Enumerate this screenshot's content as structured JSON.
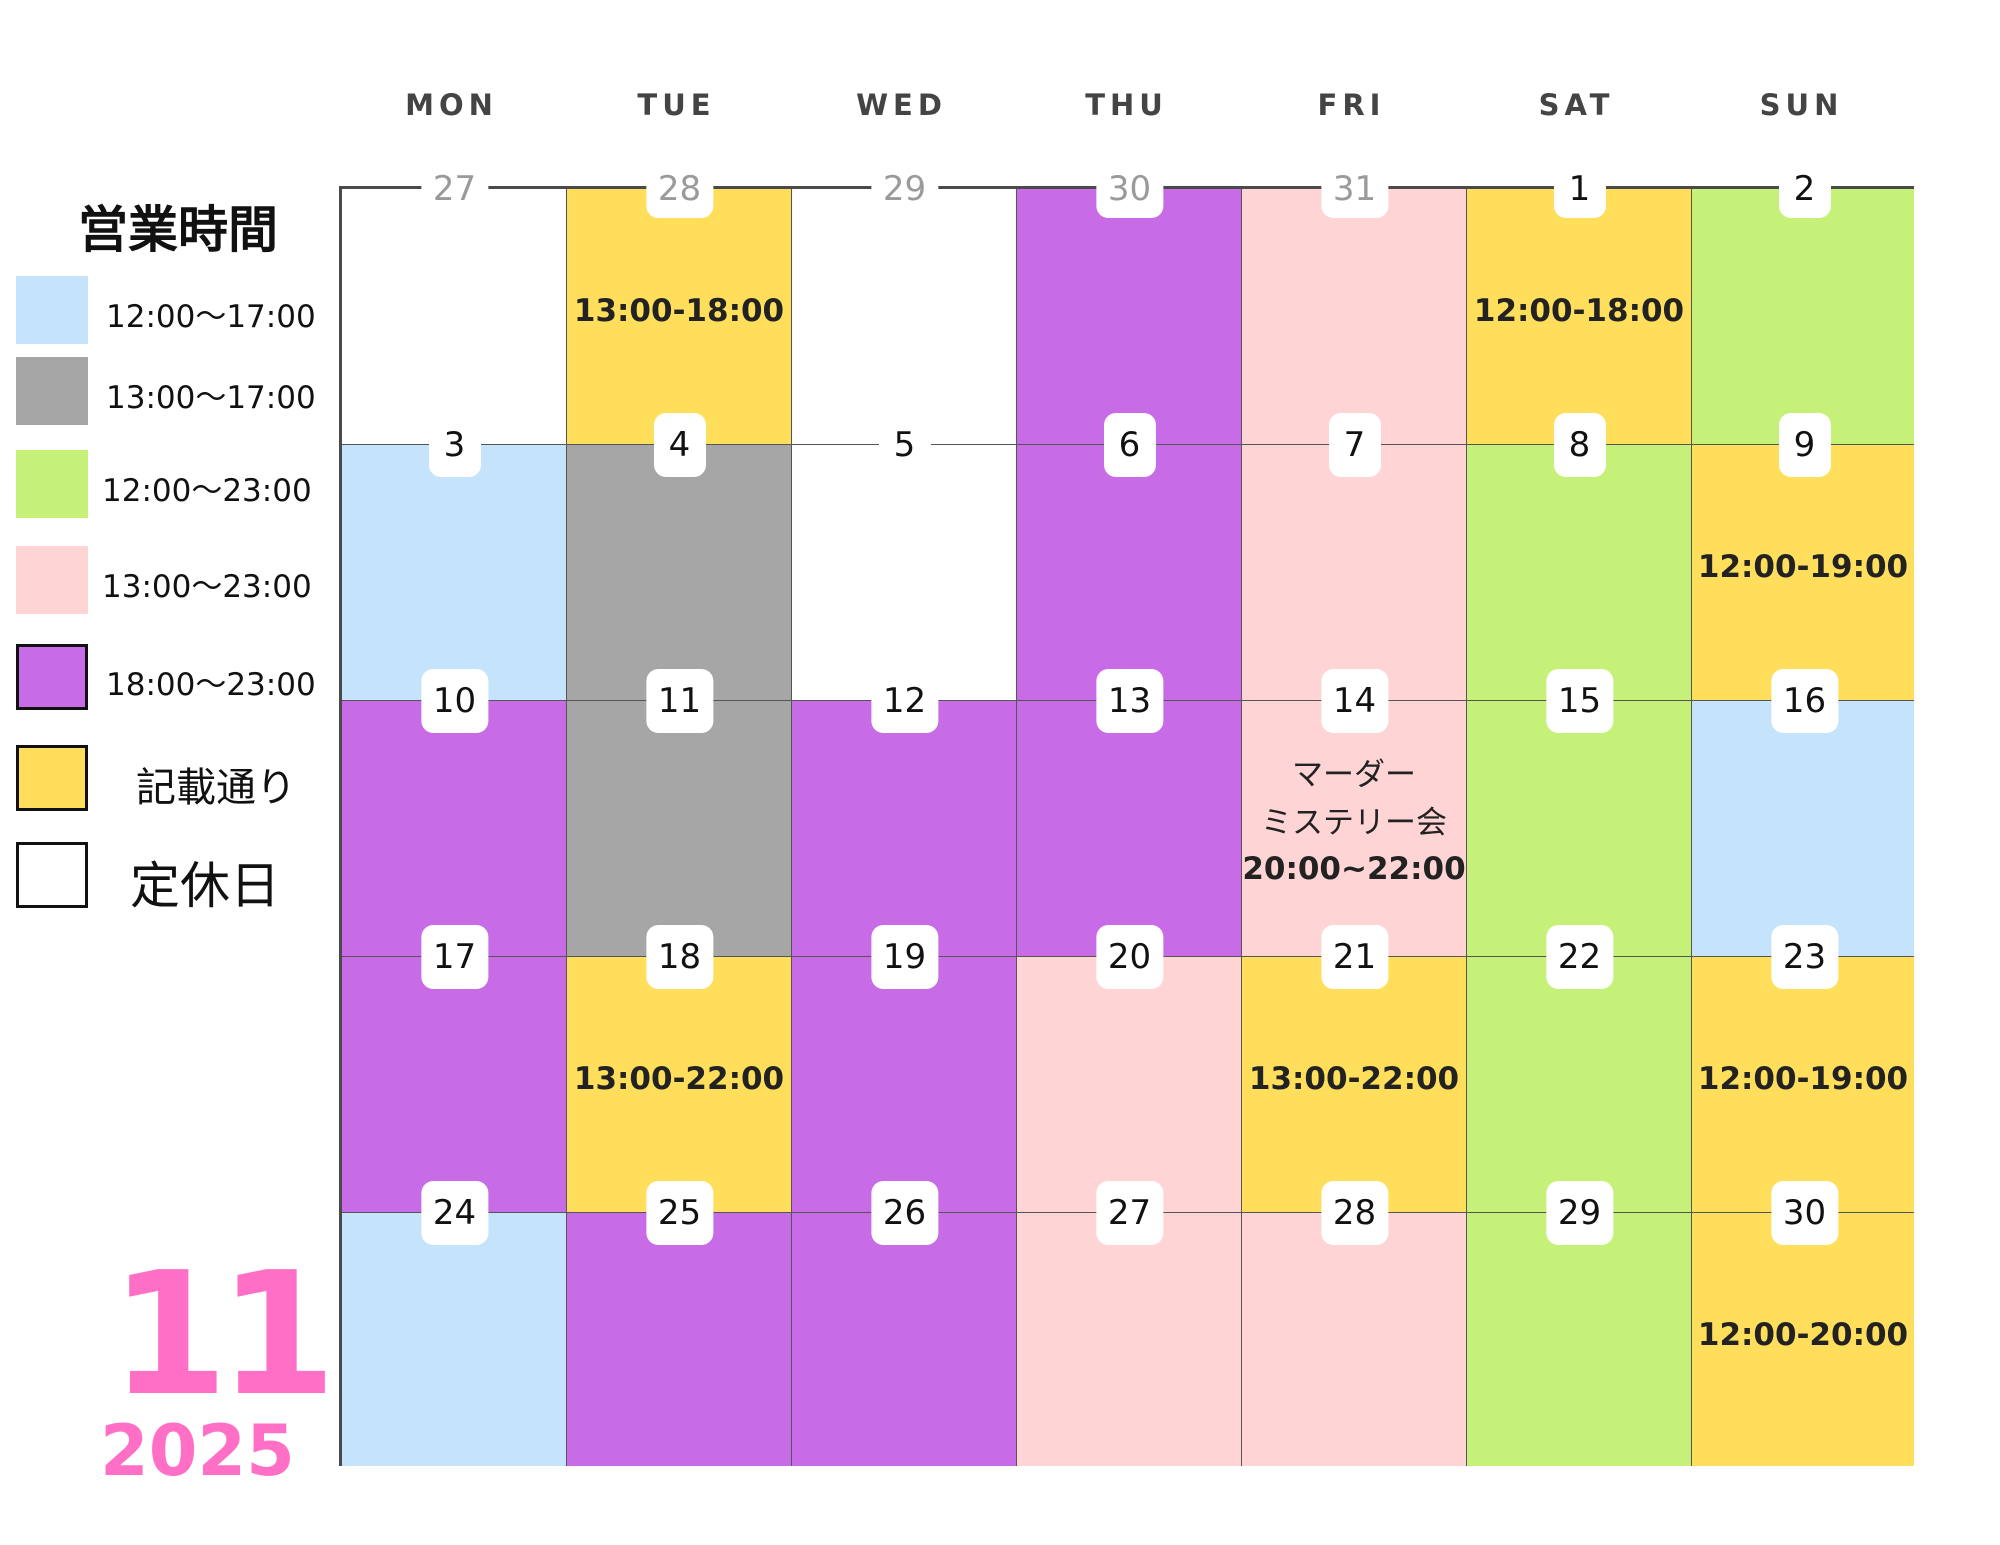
{
  "colors": {
    "blue": "#c5e4fb",
    "gray": "#a6a6a6",
    "green": "#c5f178",
    "pink": "#ffd4d4",
    "purple": "#c86be6",
    "yellow": "#ffde5b",
    "white": "#ffffff",
    "month": "#ff6fc6"
  },
  "weekdays": [
    "MON",
    "TUE",
    "WED",
    "THU",
    "FRI",
    "SAT",
    "SUN"
  ],
  "legend": {
    "title": "営業時間",
    "items": [
      {
        "label": "12:00〜17:00",
        "color": "blue"
      },
      {
        "label": "13:00〜17:00",
        "color": "gray"
      },
      {
        "label": "12:00〜23:00",
        "color": "green"
      },
      {
        "label": "13:00〜23:00",
        "color": "pink"
      },
      {
        "label": "18:00〜23:00",
        "color": "purple"
      },
      {
        "label": "記載通り",
        "color": "yellow"
      },
      {
        "label": "定休日",
        "color": "white"
      }
    ]
  },
  "month": "11",
  "year": "2025",
  "weeks": [
    [
      {
        "date": "27",
        "outside": true,
        "color": "white"
      },
      {
        "date": "28",
        "outside": true,
        "color": "yellow",
        "hours": "13:00-18:00"
      },
      {
        "date": "29",
        "outside": true,
        "color": "white"
      },
      {
        "date": "30",
        "outside": true,
        "color": "purple"
      },
      {
        "date": "31",
        "outside": true,
        "color": "pink"
      },
      {
        "date": "1",
        "color": "yellow",
        "hours": "12:00-18:00"
      },
      {
        "date": "2",
        "color": "green"
      }
    ],
    [
      {
        "date": "3",
        "color": "blue"
      },
      {
        "date": "4",
        "color": "gray"
      },
      {
        "date": "5",
        "color": "white"
      },
      {
        "date": "6",
        "color": "purple"
      },
      {
        "date": "7",
        "color": "pink"
      },
      {
        "date": "8",
        "color": "green"
      },
      {
        "date": "9",
        "color": "yellow",
        "hours": "12:00-19:00"
      }
    ],
    [
      {
        "date": "10",
        "color": "purple"
      },
      {
        "date": "11",
        "color": "gray"
      },
      {
        "date": "12",
        "color": "purple"
      },
      {
        "date": "13",
        "color": "purple"
      },
      {
        "date": "14",
        "color": "pink",
        "note1": "マーダー",
        "note2": "ミステリー会",
        "hours": "20:00~22:00"
      },
      {
        "date": "15",
        "color": "green"
      },
      {
        "date": "16",
        "color": "blue"
      }
    ],
    [
      {
        "date": "17",
        "color": "purple"
      },
      {
        "date": "18",
        "color": "yellow",
        "hours": "13:00-22:00"
      },
      {
        "date": "19",
        "color": "purple"
      },
      {
        "date": "20",
        "color": "pink"
      },
      {
        "date": "21",
        "color": "yellow",
        "hours": "13:00-22:00"
      },
      {
        "date": "22",
        "color": "green"
      },
      {
        "date": "23",
        "color": "yellow",
        "hours": "12:00-19:00"
      }
    ],
    [
      {
        "date": "24",
        "color": "blue"
      },
      {
        "date": "25",
        "color": "purple"
      },
      {
        "date": "26",
        "color": "purple"
      },
      {
        "date": "27",
        "color": "pink"
      },
      {
        "date": "28",
        "color": "pink"
      },
      {
        "date": "29",
        "color": "green"
      },
      {
        "date": "30",
        "color": "yellow",
        "hours": "12:00-20:00"
      }
    ]
  ]
}
